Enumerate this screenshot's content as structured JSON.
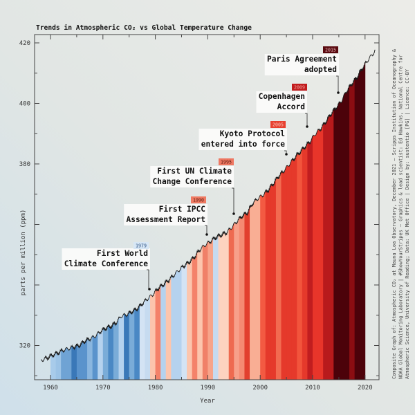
{
  "chart_data": {
    "type": "area",
    "title": "Trends in Atmospheric CO₂ vs Global Temperature Change",
    "xlabel": "Year",
    "ylabel": "parts per million (ppm)",
    "xlim": [
      1957,
      2023
    ],
    "ylim": [
      308.7,
      422.7
    ],
    "xticks": [
      "1960",
      "1970",
      "1980",
      "1990",
      "2000",
      "2010",
      "2020"
    ],
    "yticks": [
      "420",
      "400",
      "380",
      "320"
    ],
    "grid": false,
    "co2_series": {
      "years": [
        1958,
        1959,
        1960,
        1961,
        1962,
        1963,
        1964,
        1965,
        1966,
        1967,
        1968,
        1969,
        1970,
        1971,
        1972,
        1973,
        1974,
        1975,
        1976,
        1977,
        1978,
        1979,
        1980,
        1981,
        1982,
        1983,
        1984,
        1985,
        1986,
        1987,
        1988,
        1989,
        1990,
        1991,
        1992,
        1993,
        1994,
        1995,
        1996,
        1997,
        1998,
        1999,
        2000,
        2001,
        2002,
        2003,
        2004,
        2005,
        2006,
        2007,
        2008,
        2009,
        2010,
        2011,
        2012,
        2013,
        2014,
        2015,
        2016,
        2017,
        2018,
        2019,
        2020,
        2021
      ],
      "ppm": [
        315.3,
        316.0,
        316.9,
        317.6,
        318.5,
        319.0,
        319.6,
        320.0,
        321.4,
        322.2,
        323.0,
        324.6,
        325.7,
        326.3,
        327.5,
        329.7,
        330.2,
        331.1,
        332.1,
        333.8,
        335.4,
        336.8,
        338.8,
        340.1,
        341.5,
        343.2,
        344.9,
        346.4,
        347.6,
        349.3,
        351.7,
        353.2,
        354.4,
        355.7,
        356.5,
        357.2,
        358.9,
        360.9,
        362.7,
        363.8,
        366.8,
        368.5,
        369.7,
        371.3,
        373.5,
        375.9,
        377.7,
        379.8,
        381.9,
        383.8,
        385.6,
        387.4,
        389.9,
        391.6,
        393.9,
        396.5,
        398.7,
        400.8,
        404.2,
        406.5,
        408.7,
        411.7,
        414.2,
        416.4
      ]
    },
    "stripes": {
      "start_year": 1960,
      "colors": [
        "#a8cbea",
        "#9cc3e6",
        "#6fa3d4",
        "#6fa3d4",
        "#3a78b8",
        "#5a93cc",
        "#5a93cc",
        "#8ab6df",
        "#5a93cc",
        "#b5d2ee",
        "#7aacd8",
        "#4a88c4",
        "#7aacd8",
        "#b5d2ee",
        "#3a78b8",
        "#7aacd8",
        "#4a88c4",
        "#d3e3f4",
        "#c6dbf0",
        "#fcc5ad",
        "#f4826a",
        "#b5d2ee",
        "#fcc5ad",
        "#b5d2ee",
        "#b5d2ee",
        "#d3e3f4",
        "#fcc5ad",
        "#f4826a",
        "#fcc5ad",
        "#f08068",
        "#f7a48a",
        "#c6dbf0",
        "#fdd3c0",
        "#fdd3c0",
        "#ee6a50",
        "#f7a08a",
        "#f58b72",
        "#e2402e",
        "#f9ae94",
        "#f9ae94",
        "#f35a42",
        "#e5392b",
        "#e5392b",
        "#f26a50",
        "#e5392b",
        "#e5392b",
        "#e5392b",
        "#f2543c",
        "#e5392b",
        "#c11d1f",
        "#e8352a",
        "#e8352a",
        "#b81a1c",
        "#b81a1c",
        "#4c020a",
        "#4c020a",
        "#4c020a",
        "#8b0d12",
        "#4c020a",
        "#4c020a"
      ]
    },
    "annotations": [
      {
        "year": "1979",
        "line1": "First World",
        "line2": "Climate Conference",
        "badge_bg": "#d6e6f5",
        "badge_fg": "#2a4f80"
      },
      {
        "year": "1990",
        "line1": "First IPCC",
        "line2": "Assessment Report",
        "badge_bg": "#ef7a62",
        "badge_fg": "#5a1a10"
      },
      {
        "year": "1995",
        "line1": "First UN Climate",
        "line2": "Change Conference",
        "badge_bg": "#ee7862",
        "badge_fg": "#5a1a10"
      },
      {
        "year": "2005",
        "line1": "Kyoto Protocol",
        "line2": "entered into force",
        "badge_bg": "#e8402f",
        "badge_fg": "#f7c7bd"
      },
      {
        "year": "2009",
        "line1": "Copenhagen",
        "line2": "Accord",
        "badge_bg": "#c21c1e",
        "badge_fg": "#f0a6a0"
      },
      {
        "year": "2015",
        "line1": "Paris Agreement",
        "line2": "adopted",
        "badge_bg": "#5a0a10",
        "badge_fg": "#e8b8bb"
      }
    ]
  },
  "credits": {
    "line1": "Composite Graph of: Atmospheric CO₂ at Mauna Loa Observatory, December 2021 – Scripps Institution of Oceanography &",
    "line2": "NOAA Global Monitoring Laboratory | #ShowYourStripes – Graphics & lead scientist: Ed Hawkins, National Centre for",
    "line3": "Atmospheric Science, University of Reading; Data: UK Met Office | Design by: sustentio [PG] | Licence: CC-BY"
  },
  "colors": {
    "curve": "#1a1a1a",
    "axis": "#444444",
    "background_top": "#ebebe7",
    "background_bottom": "#d3e2ea"
  }
}
